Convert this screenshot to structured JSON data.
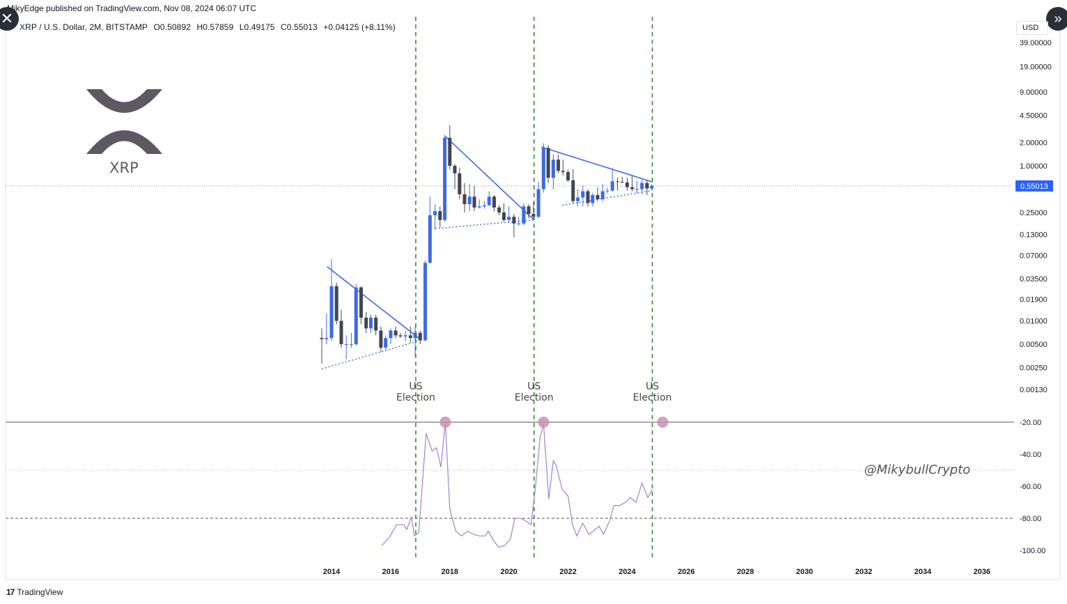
{
  "header": {
    "publisher": "MikyEdge published on TradingView.com, Nov 08, 2024 06:07 UTC",
    "symbol": "XRP / U.S. Dollar, 2M, BITSTAMP",
    "open": "O0.50892",
    "high": "H0.57859",
    "low": "L0.49175",
    "close": "C0.55013",
    "change": "+0.04125 (+8.11%)",
    "currency": "USD"
  },
  "footer": {
    "brand": "TradingView",
    "brand_mark": "17"
  },
  "buttons": {
    "close_symbol": "✕",
    "expand_symbol": "»"
  },
  "colors": {
    "up": "#3c6ae8",
    "down": "#434651",
    "trendline": "#3c6ae8",
    "election": "#2e7d32",
    "indicator": "#9c82cf",
    "marker": "#c990b3",
    "price_badge": "#2962ff"
  },
  "logo": {
    "text": "XRP"
  },
  "watermark": "@MikybullCrypto",
  "chart_data": {
    "type": "candlestick",
    "price_scale": "log",
    "y_ticks": [
      "39.00000",
      "19.00000",
      "9.00000",
      "4.50000",
      "2.00000",
      "1.00000",
      "0.25000",
      "0.13000",
      "0.07000",
      "0.03500",
      "0.01900",
      "0.01000",
      "0.00500",
      "0.00250",
      "0.00130"
    ],
    "last_price_label": "0.55013",
    "last_price": 0.55013,
    "x_ticks": [
      "2014",
      "2016",
      "2018",
      "2020",
      "2022",
      "2024",
      "2026",
      "2028",
      "2030",
      "2032",
      "2034",
      "2036"
    ],
    "candles": [
      {
        "t": 2013.67,
        "o": 0.006,
        "h": 0.008,
        "l": 0.0028,
        "c": 0.0058
      },
      {
        "t": 2013.83,
        "o": 0.0058,
        "h": 0.0125,
        "l": 0.005,
        "c": 0.006
      },
      {
        "t": 2014.0,
        "o": 0.006,
        "h": 0.062,
        "l": 0.0055,
        "c": 0.028
      },
      {
        "t": 2014.17,
        "o": 0.028,
        "h": 0.031,
        "l": 0.009,
        "c": 0.01
      },
      {
        "t": 2014.33,
        "o": 0.01,
        "h": 0.014,
        "l": 0.0045,
        "c": 0.005
      },
      {
        "t": 2014.5,
        "o": 0.005,
        "h": 0.0065,
        "l": 0.0032,
        "c": 0.005
      },
      {
        "t": 2014.67,
        "o": 0.005,
        "h": 0.007,
        "l": 0.0045,
        "c": 0.005
      },
      {
        "t": 2014.83,
        "o": 0.005,
        "h": 0.03,
        "l": 0.0048,
        "c": 0.027
      },
      {
        "t": 2015.0,
        "o": 0.027,
        "h": 0.028,
        "l": 0.009,
        "c": 0.011
      },
      {
        "t": 2015.17,
        "o": 0.011,
        "h": 0.013,
        "l": 0.007,
        "c": 0.008
      },
      {
        "t": 2015.33,
        "o": 0.008,
        "h": 0.012,
        "l": 0.007,
        "c": 0.011
      },
      {
        "t": 2015.5,
        "o": 0.011,
        "h": 0.012,
        "l": 0.0065,
        "c": 0.0075
      },
      {
        "t": 2015.67,
        "o": 0.0075,
        "h": 0.0085,
        "l": 0.004,
        "c": 0.0045
      },
      {
        "t": 2015.83,
        "o": 0.0045,
        "h": 0.0065,
        "l": 0.0042,
        "c": 0.006
      },
      {
        "t": 2016.0,
        "o": 0.006,
        "h": 0.008,
        "l": 0.005,
        "c": 0.0075
      },
      {
        "t": 2016.17,
        "o": 0.0075,
        "h": 0.0085,
        "l": 0.006,
        "c": 0.0065
      },
      {
        "t": 2016.33,
        "o": 0.0065,
        "h": 0.007,
        "l": 0.006,
        "c": 0.0063
      },
      {
        "t": 2016.5,
        "o": 0.0063,
        "h": 0.0075,
        "l": 0.0055,
        "c": 0.0065
      },
      {
        "t": 2016.67,
        "o": 0.0065,
        "h": 0.0085,
        "l": 0.0052,
        "c": 0.006
      },
      {
        "t": 2016.83,
        "o": 0.006,
        "h": 0.0085,
        "l": 0.0035,
        "c": 0.007
      },
      {
        "t": 2017.0,
        "o": 0.007,
        "h": 0.0075,
        "l": 0.005,
        "c": 0.0056
      },
      {
        "t": 2017.17,
        "o": 0.0056,
        "h": 0.06,
        "l": 0.0055,
        "c": 0.056
      },
      {
        "t": 2017.33,
        "o": 0.056,
        "h": 0.4,
        "l": 0.055,
        "c": 0.23
      },
      {
        "t": 2017.5,
        "o": 0.23,
        "h": 0.32,
        "l": 0.15,
        "c": 0.26
      },
      {
        "t": 2017.67,
        "o": 0.26,
        "h": 0.3,
        "l": 0.16,
        "c": 0.2
      },
      {
        "t": 2017.83,
        "o": 0.2,
        "h": 2.5,
        "l": 0.19,
        "c": 2.3
      },
      {
        "t": 2018.0,
        "o": 2.3,
        "h": 3.35,
        "l": 0.9,
        "c": 1.0
      },
      {
        "t": 2018.17,
        "o": 1.0,
        "h": 1.05,
        "l": 0.5,
        "c": 0.8
      },
      {
        "t": 2018.33,
        "o": 0.8,
        "h": 0.95,
        "l": 0.37,
        "c": 0.43
      },
      {
        "t": 2018.5,
        "o": 0.43,
        "h": 0.6,
        "l": 0.25,
        "c": 0.32
      },
      {
        "t": 2018.67,
        "o": 0.32,
        "h": 0.58,
        "l": 0.26,
        "c": 0.4
      },
      {
        "t": 2018.83,
        "o": 0.4,
        "h": 0.55,
        "l": 0.26,
        "c": 0.29
      },
      {
        "t": 2019.0,
        "o": 0.29,
        "h": 0.37,
        "l": 0.28,
        "c": 0.3
      },
      {
        "t": 2019.17,
        "o": 0.3,
        "h": 0.35,
        "l": 0.28,
        "c": 0.31
      },
      {
        "t": 2019.33,
        "o": 0.31,
        "h": 0.47,
        "l": 0.3,
        "c": 0.4
      },
      {
        "t": 2019.5,
        "o": 0.4,
        "h": 0.42,
        "l": 0.26,
        "c": 0.29
      },
      {
        "t": 2019.67,
        "o": 0.29,
        "h": 0.31,
        "l": 0.23,
        "c": 0.25
      },
      {
        "t": 2019.83,
        "o": 0.25,
        "h": 0.33,
        "l": 0.19,
        "c": 0.2
      },
      {
        "t": 2020.0,
        "o": 0.2,
        "h": 0.3,
        "l": 0.19,
        "c": 0.22
      },
      {
        "t": 2020.17,
        "o": 0.22,
        "h": 0.24,
        "l": 0.12,
        "c": 0.18
      },
      {
        "t": 2020.33,
        "o": 0.18,
        "h": 0.22,
        "l": 0.17,
        "c": 0.18
      },
      {
        "t": 2020.5,
        "o": 0.18,
        "h": 0.33,
        "l": 0.17,
        "c": 0.3
      },
      {
        "t": 2020.67,
        "o": 0.3,
        "h": 0.32,
        "l": 0.21,
        "c": 0.24
      },
      {
        "t": 2020.83,
        "o": 0.24,
        "h": 0.34,
        "l": 0.21,
        "c": 0.22
      },
      {
        "t": 2021.0,
        "o": 0.22,
        "h": 0.62,
        "l": 0.21,
        "c": 0.5
      },
      {
        "t": 2021.17,
        "o": 0.5,
        "h": 1.96,
        "l": 0.45,
        "c": 1.7
      },
      {
        "t": 2021.33,
        "o": 1.7,
        "h": 1.85,
        "l": 0.6,
        "c": 0.7
      },
      {
        "t": 2021.5,
        "o": 0.7,
        "h": 1.4,
        "l": 0.5,
        "c": 1.2
      },
      {
        "t": 2021.67,
        "o": 1.2,
        "h": 1.4,
        "l": 0.8,
        "c": 0.86
      },
      {
        "t": 2021.83,
        "o": 0.86,
        "h": 1.2,
        "l": 0.75,
        "c": 0.83
      },
      {
        "t": 2022.0,
        "o": 0.83,
        "h": 0.9,
        "l": 0.62,
        "c": 0.65
      },
      {
        "t": 2022.17,
        "o": 0.65,
        "h": 0.91,
        "l": 0.33,
        "c": 0.35
      },
      {
        "t": 2022.33,
        "o": 0.35,
        "h": 0.5,
        "l": 0.3,
        "c": 0.39
      },
      {
        "t": 2022.5,
        "o": 0.39,
        "h": 0.56,
        "l": 0.3,
        "c": 0.47
      },
      {
        "t": 2022.67,
        "o": 0.47,
        "h": 0.5,
        "l": 0.3,
        "c": 0.33
      },
      {
        "t": 2022.83,
        "o": 0.33,
        "h": 0.45,
        "l": 0.3,
        "c": 0.42
      },
      {
        "t": 2023.0,
        "o": 0.42,
        "h": 0.53,
        "l": 0.35,
        "c": 0.37
      },
      {
        "t": 2023.17,
        "o": 0.37,
        "h": 0.58,
        "l": 0.35,
        "c": 0.47
      },
      {
        "t": 2023.33,
        "o": 0.47,
        "h": 0.52,
        "l": 0.44,
        "c": 0.48
      },
      {
        "t": 2023.5,
        "o": 0.48,
        "h": 0.93,
        "l": 0.46,
        "c": 0.63
      },
      {
        "t": 2023.67,
        "o": 0.63,
        "h": 0.7,
        "l": 0.48,
        "c": 0.62
      },
      {
        "t": 2023.83,
        "o": 0.62,
        "h": 0.72,
        "l": 0.6,
        "c": 0.61
      },
      {
        "t": 2024.0,
        "o": 0.61,
        "h": 0.7,
        "l": 0.48,
        "c": 0.53
      },
      {
        "t": 2024.17,
        "o": 0.53,
        "h": 0.74,
        "l": 0.47,
        "c": 0.5
      },
      {
        "t": 2024.33,
        "o": 0.5,
        "h": 0.64,
        "l": 0.44,
        "c": 0.5
      },
      {
        "t": 2024.5,
        "o": 0.5,
        "h": 0.66,
        "l": 0.43,
        "c": 0.6
      },
      {
        "t": 2024.67,
        "o": 0.6,
        "h": 0.65,
        "l": 0.42,
        "c": 0.51
      },
      {
        "t": 2024.83,
        "o": 0.50892,
        "h": 0.57859,
        "l": 0.49175,
        "c": 0.55013
      }
    ],
    "trendlines": [
      {
        "style": "solid",
        "points": [
          [
            2013.85,
            0.05
          ],
          [
            2016.95,
            0.006
          ]
        ]
      },
      {
        "style": "dotted",
        "points": [
          [
            2013.67,
            0.0024
          ],
          [
            2016.95,
            0.0055
          ]
        ]
      },
      {
        "style": "solid",
        "points": [
          [
            2017.85,
            2.4
          ],
          [
            2020.85,
            0.2
          ]
        ]
      },
      {
        "style": "dotted",
        "points": [
          [
            2017.5,
            0.155
          ],
          [
            2020.85,
            0.2
          ]
        ]
      },
      {
        "style": "solid",
        "points": [
          [
            2021.1,
            1.75
          ],
          [
            2024.85,
            0.62
          ]
        ]
      },
      {
        "style": "dotted",
        "points": [
          [
            2021.8,
            0.31
          ],
          [
            2024.85,
            0.48
          ]
        ]
      }
    ],
    "election_lines": [
      {
        "t": 2016.85,
        "label_top": "US",
        "label_bottom": "Election"
      },
      {
        "t": 2020.85,
        "label_top": "US",
        "label_bottom": "Election"
      },
      {
        "t": 2024.85,
        "label_top": "US",
        "label_bottom": "Election"
      }
    ],
    "indicator": {
      "y_ticks": [
        "-20.00",
        "-40.00",
        "-60.00",
        "-80.00",
        "-100.00"
      ],
      "levels": {
        "upper": -20,
        "middle": -50,
        "lower": -80
      },
      "values": [
        [
          2015.7,
          -97
        ],
        [
          2015.95,
          -92
        ],
        [
          2016.2,
          -84
        ],
        [
          2016.45,
          -84
        ],
        [
          2016.55,
          -87
        ],
        [
          2016.7,
          -79
        ],
        [
          2016.8,
          -91
        ],
        [
          2016.95,
          -89
        ],
        [
          2017.2,
          -27
        ],
        [
          2017.4,
          -38
        ],
        [
          2017.55,
          -36
        ],
        [
          2017.7,
          -48
        ],
        [
          2017.85,
          -20
        ],
        [
          2018.0,
          -74
        ],
        [
          2018.2,
          -88
        ],
        [
          2018.4,
          -91
        ],
        [
          2018.6,
          -88
        ],
        [
          2018.8,
          -90
        ],
        [
          2019.0,
          -91
        ],
        [
          2019.2,
          -91
        ],
        [
          2019.3,
          -88
        ],
        [
          2019.45,
          -93
        ],
        [
          2019.65,
          -98
        ],
        [
          2019.85,
          -97
        ],
        [
          2020.05,
          -93
        ],
        [
          2020.2,
          -80
        ],
        [
          2020.4,
          -80
        ],
        [
          2020.6,
          -82
        ],
        [
          2020.75,
          -84
        ],
        [
          2020.9,
          -60
        ],
        [
          2021.05,
          -30
        ],
        [
          2021.17,
          -21
        ],
        [
          2021.35,
          -68
        ],
        [
          2021.5,
          -44
        ],
        [
          2021.6,
          -47
        ],
        [
          2021.8,
          -62
        ],
        [
          2022.0,
          -66
        ],
        [
          2022.15,
          -84
        ],
        [
          2022.3,
          -91
        ],
        [
          2022.5,
          -83
        ],
        [
          2022.7,
          -90
        ],
        [
          2022.85,
          -88
        ],
        [
          2023.05,
          -85
        ],
        [
          2023.2,
          -90
        ],
        [
          2023.4,
          -82
        ],
        [
          2023.55,
          -72
        ],
        [
          2023.75,
          -72
        ],
        [
          2023.95,
          -70
        ],
        [
          2024.1,
          -67
        ],
        [
          2024.3,
          -70
        ],
        [
          2024.5,
          -58
        ],
        [
          2024.7,
          -67
        ],
        [
          2024.85,
          -62
        ]
      ],
      "markers": [
        [
          2017.85,
          -20
        ],
        [
          2021.17,
          -20
        ],
        [
          2025.2,
          -20
        ]
      ]
    }
  }
}
